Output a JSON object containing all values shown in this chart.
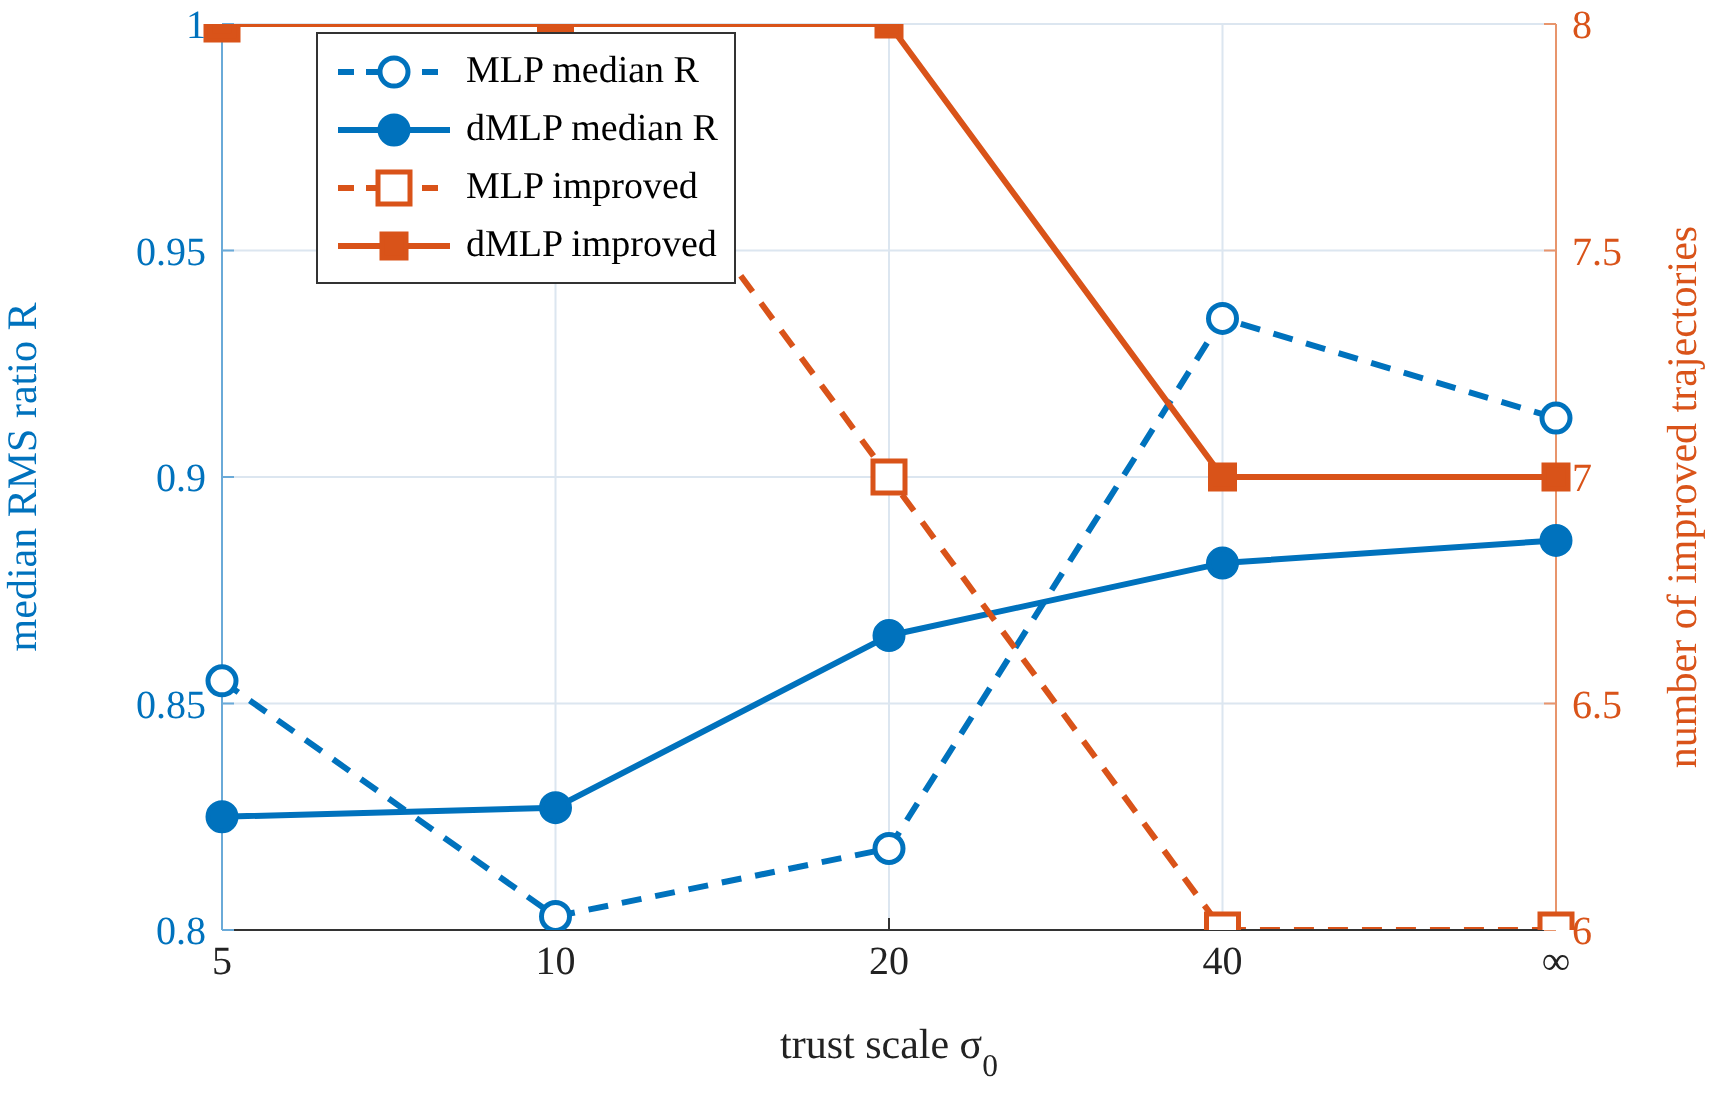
{
  "chart_data": {
    "type": "line",
    "categories": [
      "5",
      "10",
      "20",
      "40",
      "∞"
    ],
    "xlabel": "trust scale σ$_{0}$",
    "ylabel": "median RMS ratio R",
    "y2label": "number of improved trajectories",
    "ylim": [
      0.8,
      1
    ],
    "yticks": [
      0.8,
      0.85,
      0.9,
      0.95,
      1
    ],
    "y2lim": [
      6,
      8
    ],
    "y2ticks": [
      6,
      6.5,
      7,
      7.5,
      8
    ],
    "grid": true,
    "legend": "top left",
    "series": [
      {
        "name": "MLP median R",
        "color": "#0072bd",
        "values": [
          0.855,
          0.803,
          0.818,
          0.935,
          0.913
        ],
        "marker": "circle",
        "line_style": "dashed"
      },
      {
        "name": "dMLP median R",
        "color": "#0072bd",
        "values": [
          0.825,
          0.827,
          0.865,
          0.881,
          0.886
        ],
        "marker": "circle",
        "line_style": "solid"
      },
      {
        "name": "MLP improved",
        "color": "#d95319",
        "values": [
          8,
          8,
          7,
          6,
          6
        ],
        "marker": "square",
        "line_style": "dashed",
        "axis": "y2"
      },
      {
        "name": "dMLP improved",
        "color": "#d95319",
        "values": [
          8,
          8,
          8,
          7,
          7
        ],
        "marker": "square",
        "line_style": "solid",
        "axis": "y2"
      }
    ]
  }
}
